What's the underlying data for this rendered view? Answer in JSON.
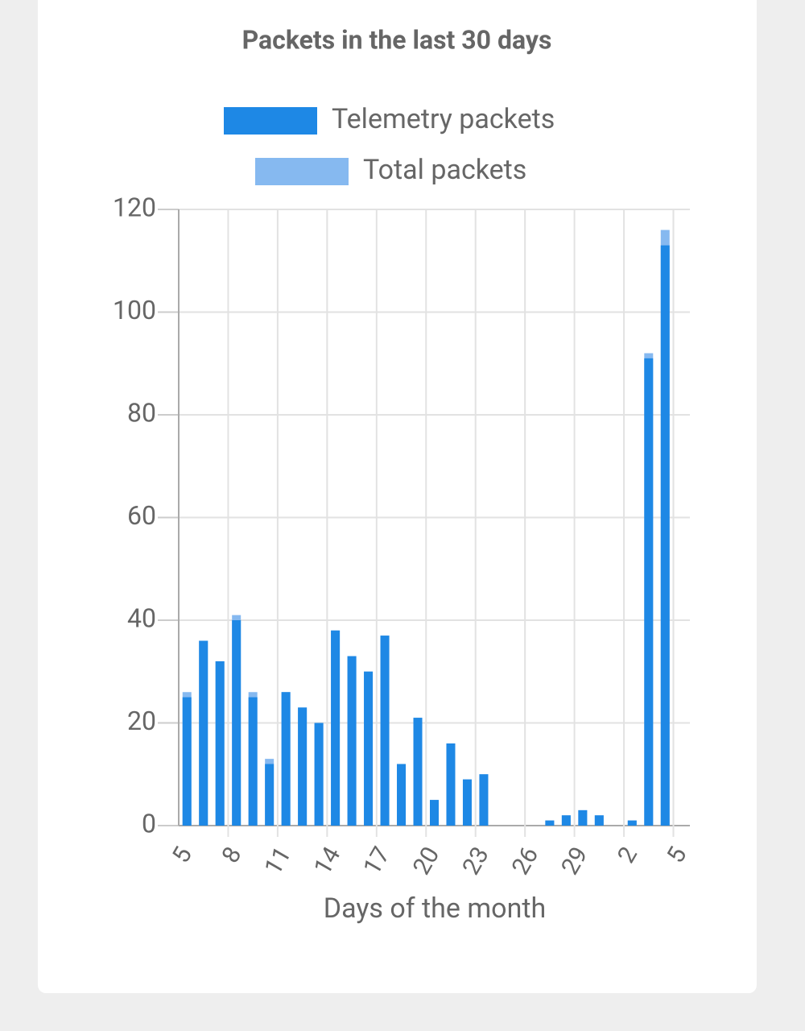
{
  "chart_data": {
    "type": "bar",
    "title": "Packets in the last 30 days",
    "x_label": "Days of the month",
    "categories": [
      "5",
      null,
      null,
      "8",
      null,
      null,
      "11",
      null,
      null,
      "14",
      null,
      null,
      "17",
      null,
      null,
      "20",
      null,
      null,
      "23",
      null,
      null,
      "26",
      null,
      null,
      "29",
      null,
      null,
      "2",
      null,
      null,
      "5"
    ],
    "series": [
      {
        "name": "Telemetry packets",
        "color": "#1e88e5",
        "values": [
          25,
          36,
          32,
          40,
          25,
          12,
          26,
          23,
          20,
          38,
          33,
          30,
          37,
          12,
          21,
          5,
          16,
          9,
          10,
          0,
          0,
          0,
          1,
          2,
          3,
          2,
          0,
          1,
          91,
          113,
          0
        ]
      },
      {
        "name": "Total packets",
        "color": "#86b9f0",
        "values": [
          26,
          36,
          32,
          41,
          26,
          13,
          26,
          23,
          20,
          38,
          33,
          30,
          37,
          12,
          21,
          5,
          16,
          9,
          10,
          0,
          0,
          0,
          1,
          2,
          3,
          2,
          0,
          1,
          92,
          116,
          0
        ]
      }
    ],
    "ylim": [
      0,
      120
    ],
    "yticks": [
      0,
      20,
      40,
      60,
      80,
      100,
      120
    ],
    "grid": true
  }
}
